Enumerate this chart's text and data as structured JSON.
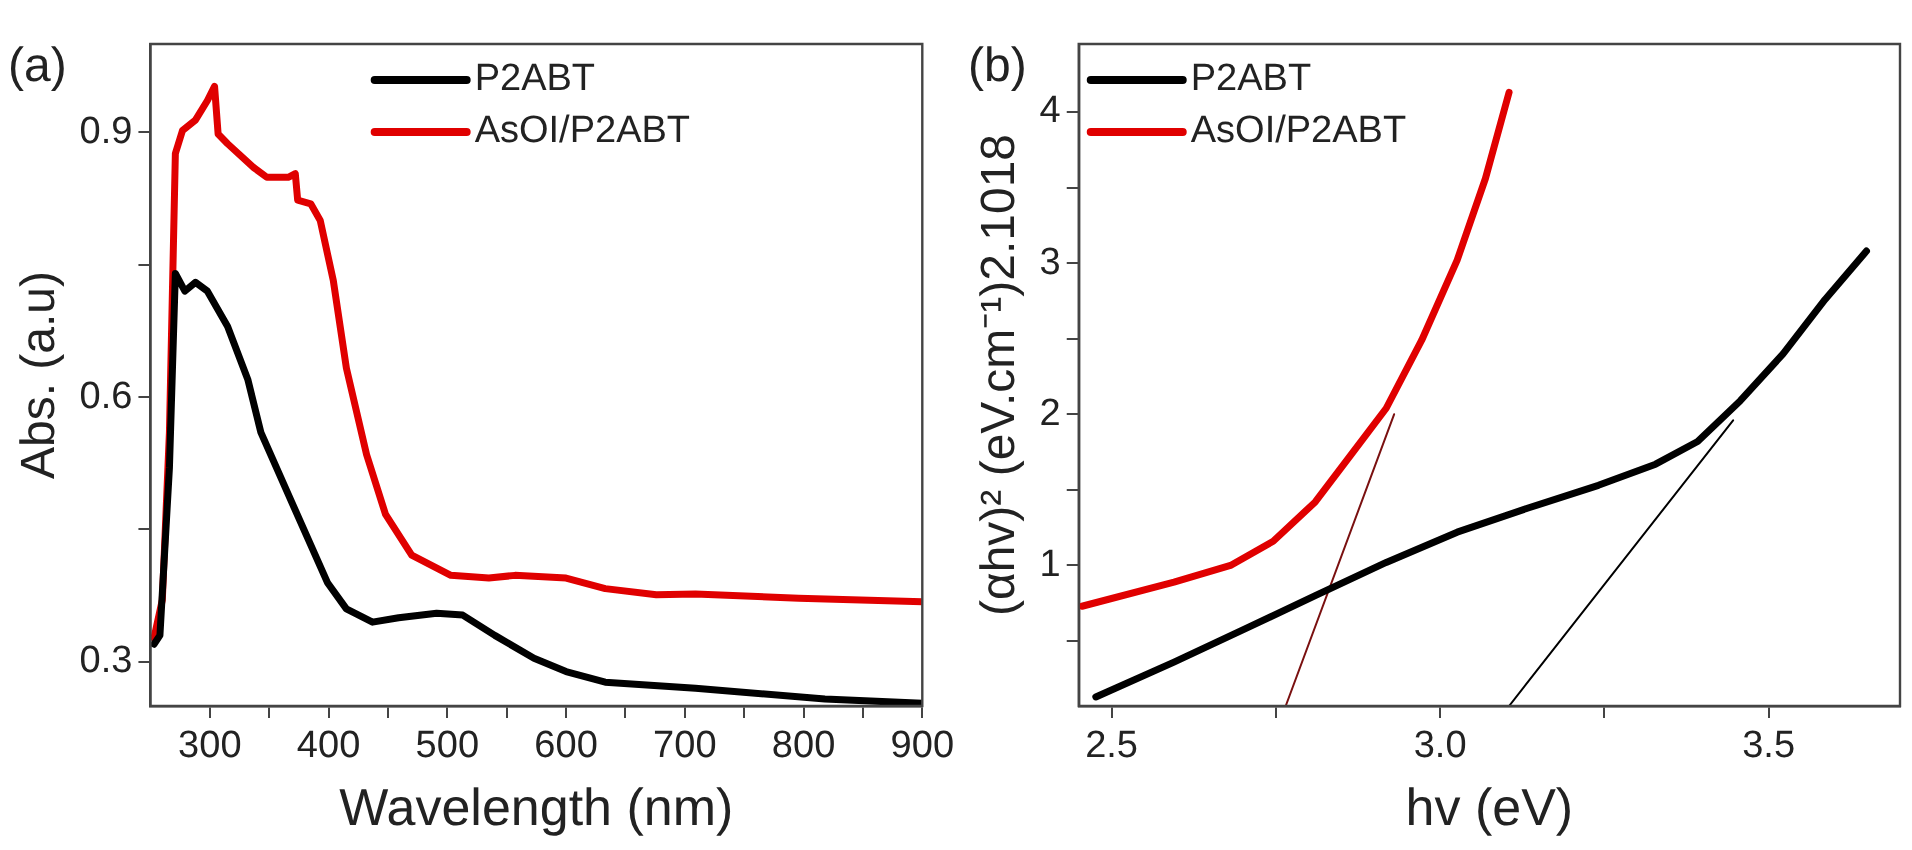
{
  "chart_data": [
    {
      "type": "line",
      "title": "(a)",
      "xlabel": "Wavelength (nm)",
      "ylabel": "Abs. (a.u)",
      "xlim": [
        250,
        900
      ],
      "xticks": [
        300,
        {
          "value": 350,
          "label": null
        },
        400,
        {
          "value": 450,
          "label": null
        },
        500,
        {
          "value": 550,
          "label": null
        },
        600,
        {
          "value": 650,
          "label": null
        },
        700,
        {
          "value": 750,
          "label": null
        },
        800,
        {
          "value": 850,
          "label": null
        },
        900
      ],
      "ylim": [
        0.25,
        1.0
      ],
      "yticks": [
        0.3,
        {
          "value": 0.45,
          "label": null
        },
        0.6,
        {
          "value": 0.75,
          "label": null
        },
        0.9
      ],
      "grid": false,
      "legend": "top",
      "marker": "none",
      "line_style": "solid",
      "series": [
        {
          "name": "P2ABT",
          "color": "#000000",
          "x": [
            253,
            258,
            266,
            271,
            279,
            288,
            298,
            315,
            332,
            343,
            366,
            399,
            415,
            437,
            459,
            491,
            513,
            540,
            573,
            600,
            633,
            709,
            818,
            900
          ],
          "values": [
            0.32,
            0.33,
            0.52,
            0.74,
            0.72,
            0.73,
            0.72,
            0.68,
            0.62,
            0.56,
            0.49,
            0.39,
            0.36,
            0.345,
            0.35,
            0.355,
            0.353,
            0.33,
            0.304,
            0.289,
            0.277,
            0.27,
            0.258,
            0.253
          ]
        },
        {
          "name": "AsOI/P2ABT",
          "color": "#e00000",
          "x": [
            253,
            260,
            266,
            271,
            277,
            288,
            298,
            304,
            307,
            315,
            337,
            348,
            366,
            372,
            374,
            385,
            393,
            404,
            415,
            432,
            448,
            470,
            503,
            535,
            557,
            600,
            633,
            676,
            709,
            796,
            900
          ],
          "values": [
            0.327,
            0.37,
            0.56,
            0.876,
            0.902,
            0.914,
            0.936,
            0.952,
            0.898,
            0.887,
            0.86,
            0.849,
            0.849,
            0.853,
            0.823,
            0.819,
            0.8,
            0.732,
            0.633,
            0.535,
            0.467,
            0.421,
            0.398,
            0.395,
            0.398,
            0.395,
            0.383,
            0.376,
            0.377,
            0.372,
            0.368
          ]
        }
      ]
    },
    {
      "type": "line",
      "title": "(b)",
      "xlabel": "hv (eV)",
      "ylabel": "(αhv)² (eV.cm⁻¹)2.1018",
      "xlim": [
        2.45,
        3.7
      ],
      "xticks": [
        {
          "value": 2.5,
          "label": "2.5"
        },
        {
          "value": 2.75,
          "label": null
        },
        {
          "value": 3.0,
          "label": "3.0"
        },
        {
          "value": 3.25,
          "label": null
        },
        {
          "value": 3.5,
          "label": "3.5"
        }
      ],
      "ylim": [
        0.07,
        4.45
      ],
      "yticks": [
        {
          "value": 0.5,
          "label": null
        },
        1,
        {
          "value": 1.5,
          "label": null
        },
        2,
        {
          "value": 2.5,
          "label": null
        },
        3,
        {
          "value": 3.5,
          "label": null
        },
        4
      ],
      "grid": false,
      "legend": "top left",
      "marker": "none",
      "line_style": "solid",
      "series": [
        {
          "name": "P2ABT",
          "color": "#000000",
          "x": [
            2.476,
            2.595,
            2.703,
            2.81,
            2.918,
            3.026,
            3.134,
            3.241,
            3.328,
            3.392,
            3.457,
            3.522,
            3.586,
            3.649
          ],
          "values": [
            0.13,
            0.36,
            0.58,
            0.8,
            1.02,
            1.22,
            1.38,
            1.53,
            1.67,
            1.82,
            2.09,
            2.4,
            2.76,
            3.08
          ]
        },
        {
          "name": "AsOI/P2ABT",
          "color": "#e00000",
          "x": [
            2.455,
            2.595,
            2.681,
            2.746,
            2.81,
            2.864,
            2.918,
            2.972,
            3.026,
            3.069,
            3.105
          ],
          "values": [
            0.73,
            0.89,
            1.0,
            1.16,
            1.42,
            1.73,
            2.04,
            2.49,
            3.02,
            3.56,
            4.13
          ]
        },
        {
          "color": "#7a1010",
          "x": [
            2.765,
            2.93
          ],
          "values": [
            0.07,
            2.0
          ]
        },
        {
          "color": "#000000",
          "x": [
            3.105,
            3.446
          ],
          "values": [
            0.07,
            1.96
          ]
        }
      ]
    }
  ]
}
